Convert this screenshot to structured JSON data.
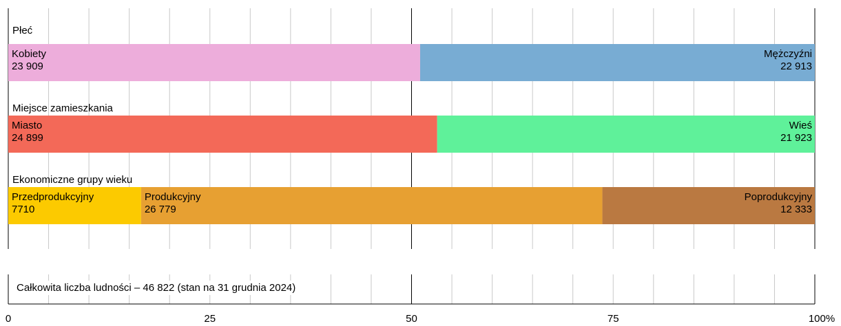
{
  "chart_data": {
    "type": "bar",
    "orientation": "horizontal-stacked-percent",
    "xlim": [
      0,
      100
    ],
    "x_ticks": [
      "0",
      "25",
      "50",
      "75",
      "100%"
    ],
    "groups": [
      {
        "title": "Płeć",
        "segments": [
          {
            "name": "Kobiety",
            "value": 23909,
            "value_label": "23 909",
            "color": "#EDADDB",
            "align": "left"
          },
          {
            "name": "Mężczyźni",
            "value": 22913,
            "value_label": "22 913",
            "color": "#78ACD3",
            "align": "right"
          }
        ]
      },
      {
        "title": "Miejsce zamieszkania",
        "segments": [
          {
            "name": "Miasto",
            "value": 24899,
            "value_label": "24 899",
            "color": "#F36958",
            "align": "left"
          },
          {
            "name": "Wieś",
            "value": 21923,
            "value_label": "21 923",
            "color": "#5FF19A",
            "align": "right"
          }
        ]
      },
      {
        "title": "Ekonomiczne grupy wieku",
        "segments": [
          {
            "name": "Przedprodukcyjny",
            "value": 7710,
            "value_label": "7710",
            "color": "#FCCA00",
            "align": "left"
          },
          {
            "name": "Produkcyjny",
            "value": 26779,
            "value_label": "26 779",
            "color": "#E7A032",
            "align": "left"
          },
          {
            "name": "Poprodukcyjny",
            "value": 12333,
            "value_label": "12 333",
            "color": "#BA7941",
            "align": "right"
          }
        ]
      }
    ],
    "footer": "Całkowita liczba ludności – 46 822 (stan na 31 grudnia 2024)"
  }
}
